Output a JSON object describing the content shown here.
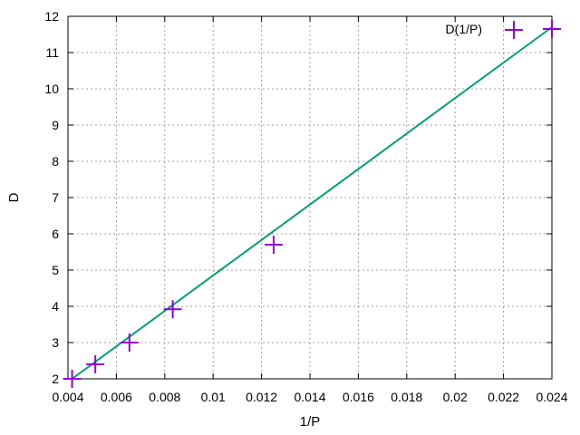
{
  "chart_data": {
    "type": "scatter",
    "xlabel": "1/P",
    "ylabel": "D",
    "xlim": [
      0.004,
      0.024
    ],
    "ylim": [
      2,
      12
    ],
    "x_ticks": [
      0.004,
      0.006,
      0.008,
      0.01,
      0.012,
      0.014,
      0.016,
      0.018,
      0.02,
      0.022,
      0.024
    ],
    "x_tick_labels": [
      "0.004",
      "0.006",
      "0.008",
      "0.01",
      "0.012",
      "0.014",
      "0.016",
      "0.018",
      "0.02",
      "0.022",
      "0.024"
    ],
    "y_ticks": [
      2,
      3,
      4,
      5,
      6,
      7,
      8,
      9,
      10,
      11,
      12
    ],
    "y_tick_labels": [
      "2",
      "3",
      "4",
      "5",
      "6",
      "7",
      "8",
      "9",
      "10",
      "11",
      "12"
    ],
    "grid": true,
    "legend_position": "top-right",
    "series": [
      {
        "name": "D(1/P)",
        "marker": "plus",
        "color": "#9400d3",
        "x": [
          0.00417,
          0.00513,
          0.00654,
          0.00833,
          0.0125,
          0.024
        ],
        "y": [
          2.0,
          2.4,
          3.0,
          3.92,
          5.7,
          11.65
        ]
      }
    ],
    "fit_line": {
      "color": "#009e73",
      "x": [
        0.00417,
        0.024
      ],
      "y": [
        2.0,
        11.7
      ]
    }
  }
}
